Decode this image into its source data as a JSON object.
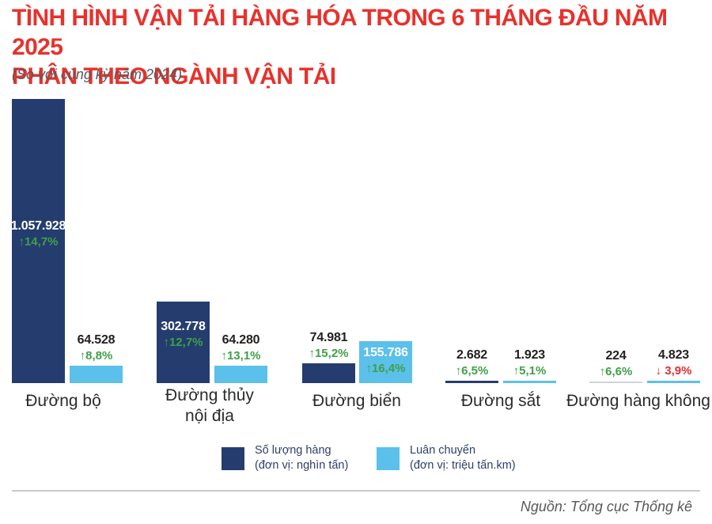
{
  "header": {
    "title_lines": [
      "TÌNH HÌNH VẬN TẢI HÀNG HÓA TRONG 6 THÁNG ĐẦU NĂM 2025",
      "PHÂN THEO NGÀNH VẬN TẢI"
    ],
    "subtitle": "(So với cùng kỳ năm 2024)"
  },
  "chart_data": {
    "type": "bar",
    "title": "TÌNH HÌNH VẬN TẢI HÀNG HÓA TRONG 6 THÁNG ĐẦU NĂM 2025 PHÂN THEO NGÀNH VẬN TẢI",
    "subtitle": "(So với cùng kỳ năm 2024)",
    "categories": [
      "Đường bộ",
      "Đường thủy nội địa",
      "Đường biển",
      "Đường sắt",
      "Đường hàng không"
    ],
    "ylim": [
      0,
      1057928
    ],
    "grid": false,
    "legend_position": "bottom",
    "faint_color": "#ccd4de",
    "series": [
      {
        "name": "Số lượng hàng",
        "unit_label": "(đơn vị: nghìn tấn)",
        "color": "#253d6e",
        "values": [
          1057928,
          302778,
          74981,
          2682,
          224
        ],
        "changes_pct": [
          14.7,
          12.7,
          15.2,
          6.5,
          6.6
        ]
      },
      {
        "name": "Luân chuyển",
        "unit_label": "(đơn vị: triệu tấn.km)",
        "color": "#5bc0ea",
        "values": [
          64528,
          64280,
          155786,
          1923,
          4823
        ],
        "changes_pct": [
          8.8,
          13.1,
          16.4,
          5.1,
          -3.9
        ]
      }
    ],
    "groups": [
      {
        "volume_value": "1.057.928",
        "volume_change": "↑14,7%",
        "rotation_value": "64.528",
        "rotation_change": "↑8,8%"
      },
      {
        "volume_value": "302.778",
        "volume_change": "↑12,7%",
        "rotation_value": "64.280",
        "rotation_change": "↑13,1%"
      },
      {
        "volume_value": "74.981",
        "volume_change": "↑15,2%",
        "rotation_value": "155.786",
        "rotation_change": "↑16,4%"
      },
      {
        "volume_value": "2.682",
        "volume_change": "↑6,5%",
        "rotation_value": "1.923",
        "rotation_change": "↑5,1%"
      },
      {
        "volume_value": "224",
        "volume_change": "↑6,6%",
        "rotation_value": "4.823",
        "rotation_change": "↓ 3,9%"
      }
    ]
  },
  "colors": {
    "title_red": "#e8312c",
    "bar_dark_navy": "#253d6e",
    "bar_light_blue": "#5bc0ea",
    "increase_green": "#3fa047",
    "decrease_red": "#e03231"
  },
  "footer": {
    "source": "Nguồn: Tổng cục Thống kê"
  }
}
